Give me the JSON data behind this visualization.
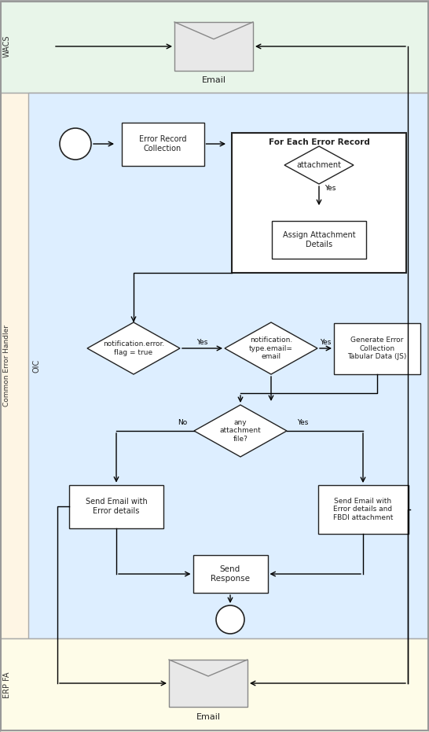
{
  "fig_width": 5.46,
  "fig_height": 9.31,
  "dpi": 100,
  "wacs_label": "WACS",
  "oic_label": "OIC",
  "erp_label": "ERP FA",
  "common_label": "Common Error Handler"
}
